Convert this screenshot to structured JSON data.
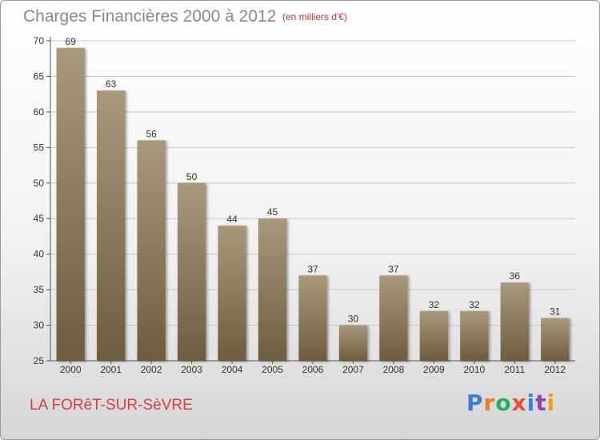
{
  "header": {
    "title": "Charges Financières 2000 à 2012",
    "subtitle": "(en milliers d'€)"
  },
  "footer": {
    "commune": "LA FORêT-SUR-SèVRE",
    "logo": "Proxiti"
  },
  "colors": {
    "bar_light": "#a8997c",
    "bar_dark": "#6e5c3e",
    "grid": "#c8c8c8"
  },
  "chart_data": {
    "type": "bar",
    "title": "Charges Financières 2000 à 2012",
    "subtitle": "(en milliers d'€)",
    "categories": [
      "2000",
      "2001",
      "2002",
      "2003",
      "2004",
      "2005",
      "2006",
      "2007",
      "2008",
      "2009",
      "2010",
      "2011",
      "2012"
    ],
    "values": [
      69,
      63,
      56,
      50,
      44,
      45,
      37,
      30,
      37,
      32,
      32,
      36,
      31
    ],
    "ylim": [
      25,
      70
    ],
    "yticks": [
      25,
      30,
      35,
      40,
      45,
      50,
      55,
      60,
      65,
      70
    ],
    "grid": true,
    "legend": "none"
  }
}
